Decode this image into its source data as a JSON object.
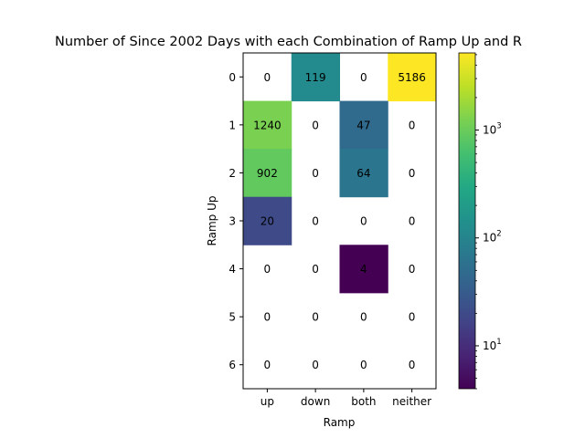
{
  "chart_data": {
    "type": "heatmap",
    "title": "Number of Since 2002 Days with each Combination of Ramp Up and R",
    "xlabel": "Ramp",
    "ylabel": "Ramp Up",
    "x_categories": [
      "up",
      "down",
      "both",
      "neither"
    ],
    "y_categories": [
      "0",
      "1",
      "2",
      "3",
      "4",
      "5",
      "6"
    ],
    "values": [
      [
        0,
        119,
        0,
        5186
      ],
      [
        1240,
        0,
        47,
        0
      ],
      [
        902,
        0,
        64,
        0
      ],
      [
        20,
        0,
        0,
        0
      ],
      [
        0,
        0,
        4,
        0
      ],
      [
        0,
        0,
        0,
        0
      ],
      [
        0,
        0,
        0,
        0
      ]
    ],
    "color_scale": "log",
    "colormap": "viridis",
    "zero_cells": "blank",
    "colorbar": {
      "range": [
        4,
        5186
      ],
      "major_ticks": [
        {
          "value": 10,
          "base": "10",
          "exp": "1"
        },
        {
          "value": 100,
          "base": "10",
          "exp": "2"
        },
        {
          "value": 1000,
          "base": "10",
          "exp": "3"
        }
      ]
    }
  }
}
